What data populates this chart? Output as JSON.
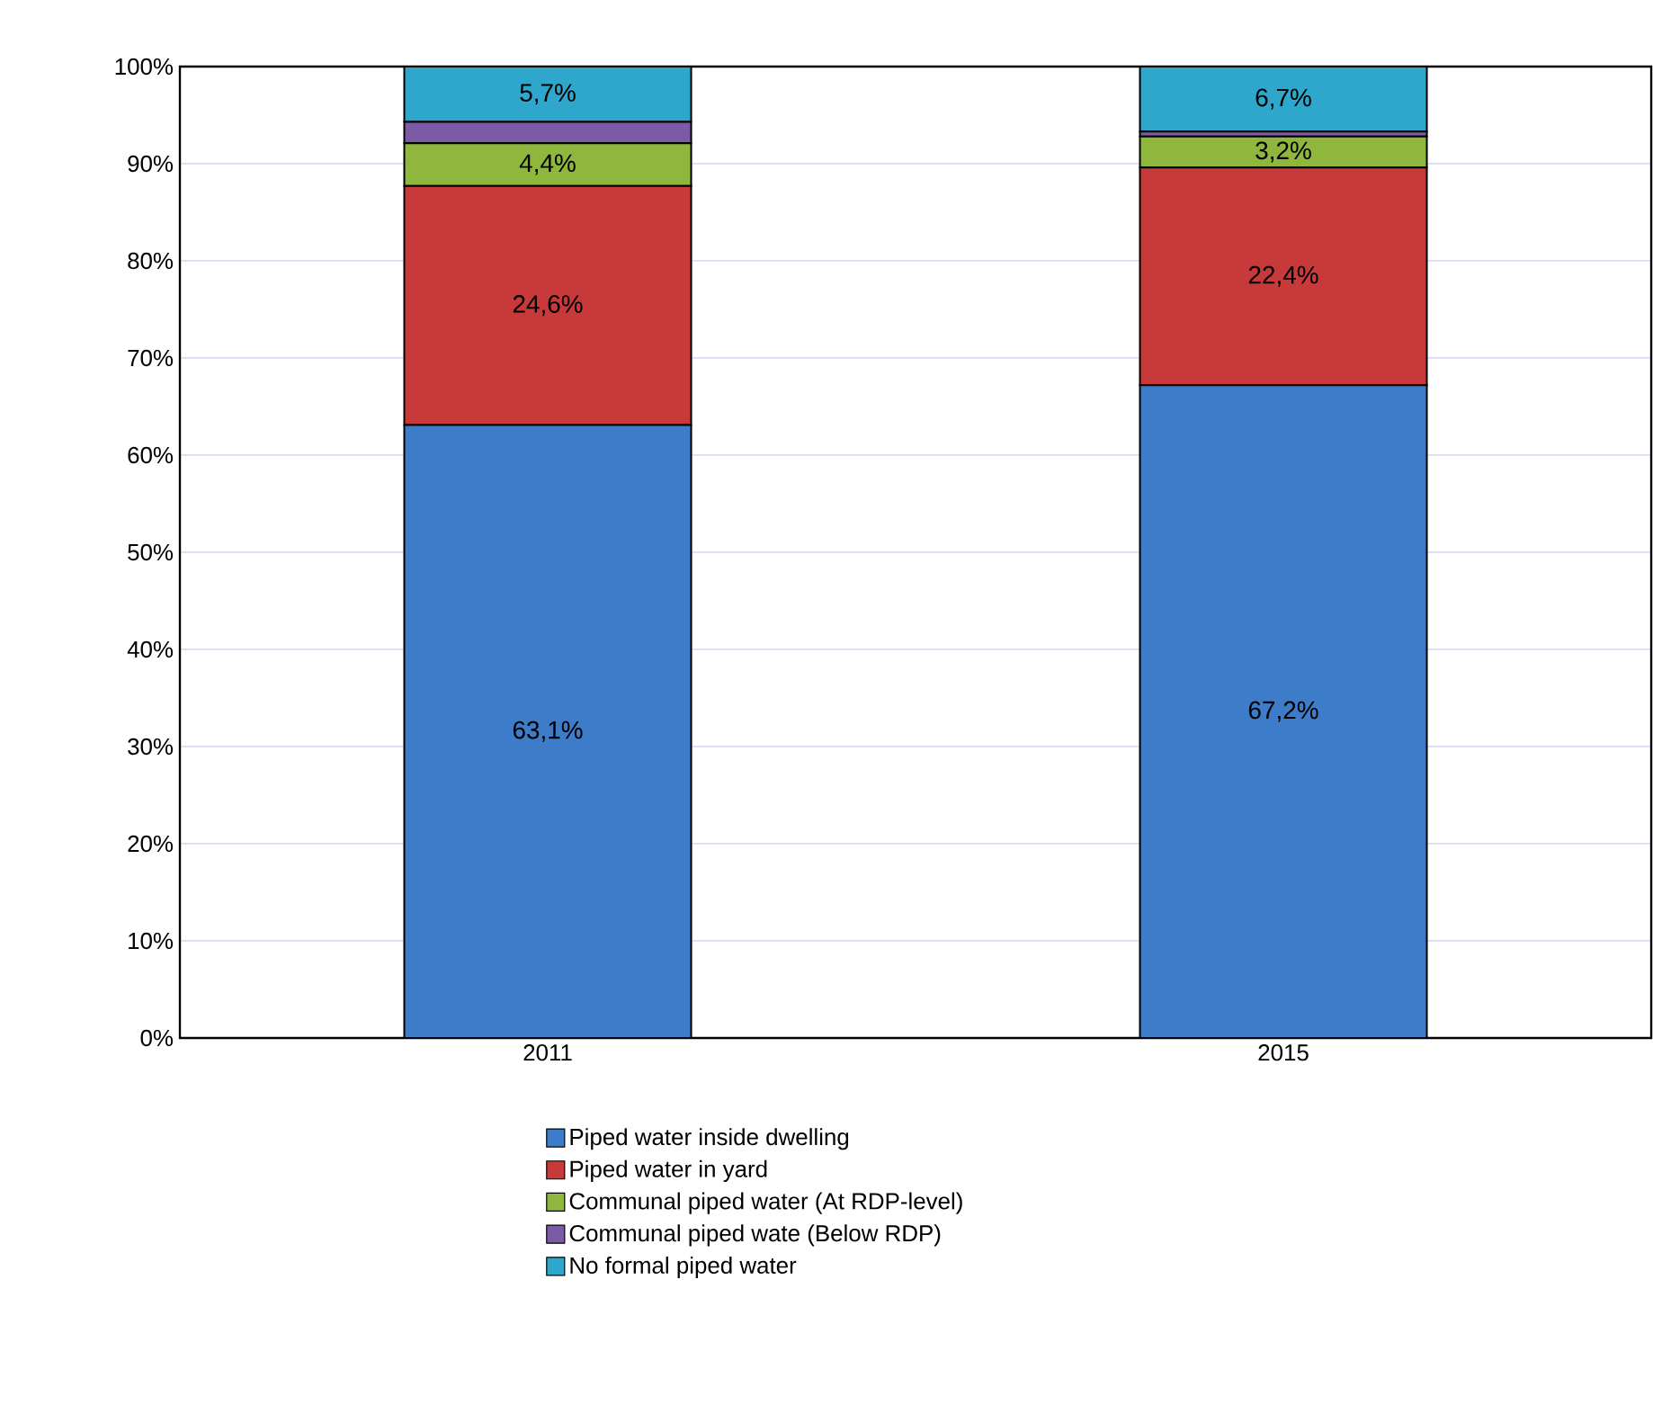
{
  "chart_data": {
    "type": "bar",
    "stacked": true,
    "categories": [
      "2011",
      "2015"
    ],
    "series": [
      {
        "name": "Piped water inside dwelling",
        "color": "#3d7cc9",
        "values": [
          63.1,
          67.2
        ],
        "value_labels": [
          "63,1%",
          "67,2%"
        ]
      },
      {
        "name": "Piped water in yard",
        "color": "#c8393a",
        "values": [
          24.6,
          22.4
        ],
        "value_labels": [
          "24,6%",
          "22,4%"
        ]
      },
      {
        "name": "Communal piped water (At RDP-level)",
        "color": "#8fb73e",
        "values": [
          4.4,
          3.2
        ],
        "value_labels": [
          "4,4%",
          "3,2%"
        ]
      },
      {
        "name": "Communal piped wate (Below RDP)",
        "color": "#7d5aa6",
        "values": [
          2.2,
          0.5
        ],
        "value_labels": [
          null,
          null
        ]
      },
      {
        "name": "No formal piped water",
        "color": "#2fa7cc",
        "values": [
          5.7,
          6.7
        ],
        "value_labels": [
          "5,7%",
          "6,7%"
        ]
      }
    ],
    "ylim": [
      0,
      100
    ],
    "yticks": [
      {
        "value": 0,
        "label": "0%"
      },
      {
        "value": 10,
        "label": "10%"
      },
      {
        "value": 20,
        "label": "20%"
      },
      {
        "value": 30,
        "label": "30%"
      },
      {
        "value": 40,
        "label": "40%"
      },
      {
        "value": 50,
        "label": "50%"
      },
      {
        "value": 60,
        "label": "60%"
      },
      {
        "value": 70,
        "label": "70%"
      },
      {
        "value": 80,
        "label": "80%"
      },
      {
        "value": 90,
        "label": "90%"
      },
      {
        "value": 100,
        "label": "100%"
      }
    ],
    "grid": "y",
    "legend": "bottom"
  }
}
